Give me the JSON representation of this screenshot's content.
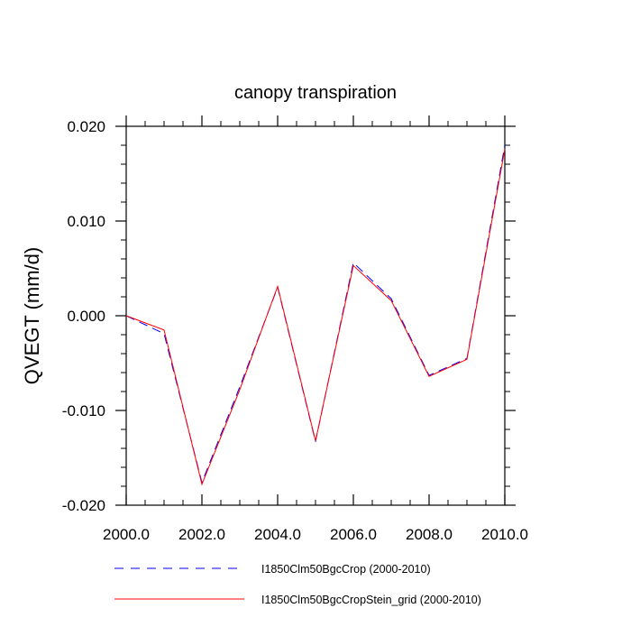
{
  "chart_data": {
    "type": "line",
    "title": "canopy transpiration",
    "ylabel": "QVEGT  (mm/d)",
    "xlabel": "",
    "xlim": [
      2000,
      2010
    ],
    "ylim": [
      -0.02,
      0.02
    ],
    "x_ticks": [
      2000,
      2002,
      2004,
      2006,
      2008,
      2010
    ],
    "x_tick_labels": [
      "2000.0",
      "2002.0",
      "2004.0",
      "2006.0",
      "2008.0",
      "2010.0"
    ],
    "y_ticks": [
      -0.02,
      -0.01,
      0,
      0.01,
      0.02
    ],
    "y_tick_labels": [
      "-0.020",
      "-0.010",
      "0.000",
      "0.010",
      "0.020"
    ],
    "grid": false,
    "legend_position": "bottom",
    "x": [
      2000,
      2001,
      2002,
      2003,
      2004,
      2005,
      2006,
      2007,
      2008,
      2009,
      2010
    ],
    "series": [
      {
        "name": "I1850Clm50BgcCrop (2000-2010)",
        "color": "#0000ff",
        "dash": "dashed",
        "values": [
          0.0,
          -0.0019,
          -0.0176,
          -0.0075,
          0.003,
          -0.0133,
          0.0056,
          0.0018,
          -0.0063,
          -0.0045,
          0.018
        ]
      },
      {
        "name": "I1850Clm50BgcCropStein_grid (2000-2010)",
        "color": "#ff0000",
        "dash": "solid",
        "values": [
          0.0,
          -0.0015,
          -0.0178,
          -0.0078,
          0.0031,
          -0.0132,
          0.0053,
          0.0016,
          -0.0064,
          -0.0046,
          0.0176
        ]
      }
    ]
  }
}
